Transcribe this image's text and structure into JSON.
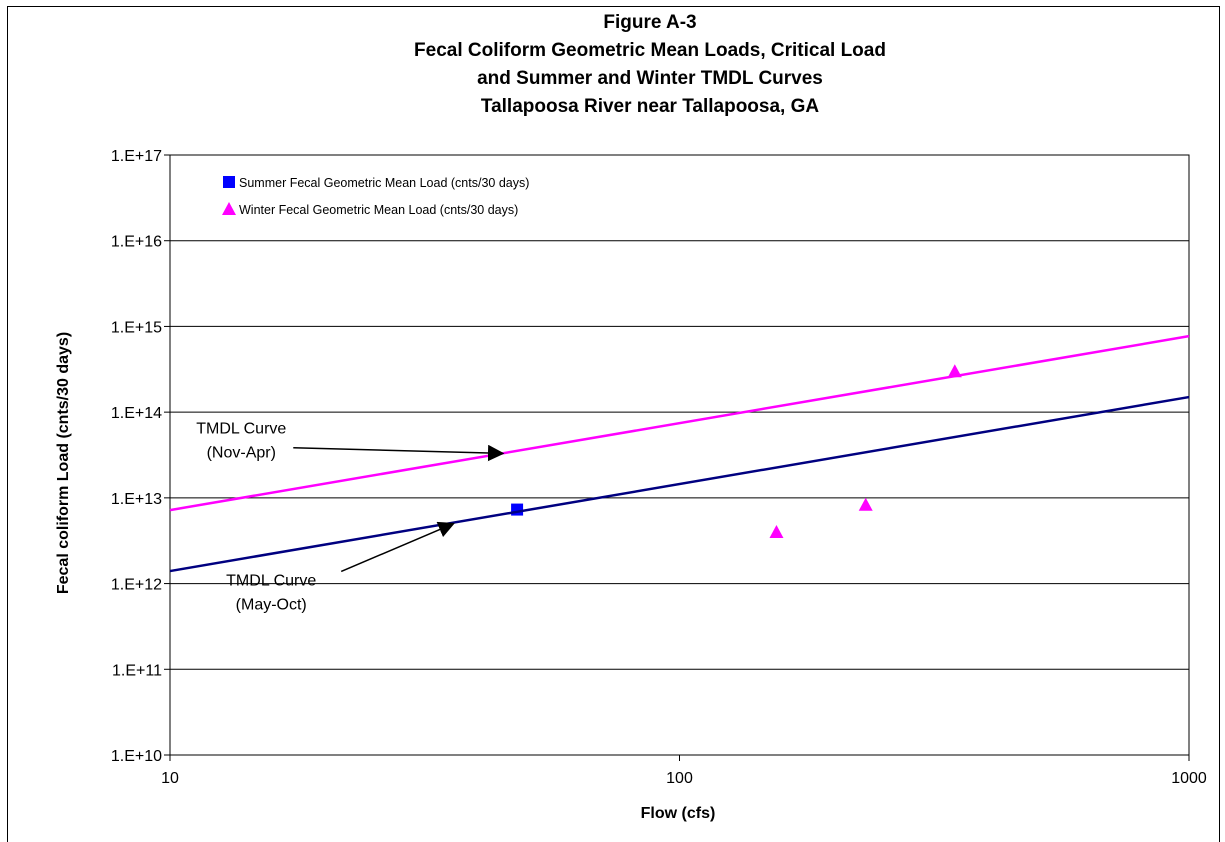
{
  "chart_data": {
    "type": "scatter",
    "title_lines": [
      "Figure A-3",
      "Fecal Coliform Geometric Mean Loads,  Critical Load",
      "and Summer and Winter TMDL Curves",
      "Tallapoosa River near Tallapoosa, GA"
    ],
    "xlabel": "Flow   (cfs)",
    "ylabel": "Fecal coliform Load  (cnts/30 days)",
    "x_scale": "log",
    "y_scale": "log",
    "xlim": [
      10,
      1000
    ],
    "ylim": [
      10000000000.0,
      1e+17
    ],
    "x_ticks": [
      {
        "value": 10,
        "label": "10"
      },
      {
        "value": 100,
        "label": "100"
      },
      {
        "value": 1000,
        "label": "1000"
      }
    ],
    "y_ticks": [
      {
        "value": 10000000000.0,
        "label": "1.E+10"
      },
      {
        "value": 100000000000.0,
        "label": "1.E+11"
      },
      {
        "value": 1000000000000.0,
        "label": "1.E+12"
      },
      {
        "value": 10000000000000.0,
        "label": "1.E+13"
      },
      {
        "value": 100000000000000.0,
        "label": "1.E+14"
      },
      {
        "value": 1000000000000000.0,
        "label": "1.E+15"
      },
      {
        "value": 1e+16,
        "label": "1.E+16"
      },
      {
        "value": 1e+17,
        "label": "1.E+17"
      }
    ],
    "grid": "horizontal",
    "legend_position": "top-left",
    "series": [
      {
        "name": "Summer Fecal Geometric Mean Load (cnts/30 days)",
        "kind": "points",
        "marker": "square",
        "color": "#0000ff",
        "points": [
          {
            "x": 48,
            "y": 7300000000000.0
          }
        ]
      },
      {
        "name": "Winter Fecal Geometric Mean Load (cnts/30 days)",
        "kind": "points",
        "marker": "triangle",
        "color": "#ff00ff",
        "points": [
          {
            "x": 155,
            "y": 4000000000000.0
          },
          {
            "x": 232,
            "y": 8300000000000.0
          },
          {
            "x": 347,
            "y": 300000000000000.0
          }
        ]
      },
      {
        "kind": "line",
        "color": "#ff00ff",
        "points": [
          {
            "x": 10,
            "y": 7200000000000.0
          },
          {
            "x": 1000,
            "y": 770000000000000.0
          }
        ]
      },
      {
        "kind": "line",
        "color": "#000080",
        "points": [
          {
            "x": 10,
            "y": 1400000000000.0
          },
          {
            "x": 1000,
            "y": 150000000000000.0
          }
        ]
      }
    ],
    "annotations": [
      {
        "lines": [
          "TMDL Curve",
          "(Nov-Apr)"
        ],
        "text_at": {
          "x": 13.8,
          "y": 56000000000000.0
        },
        "arrow_to": {
          "x": 45,
          "y": 33000000000000.0
        }
      },
      {
        "lines": [
          "TMDL Curve",
          "(May-Oct)"
        ],
        "text_at": {
          "x": 15.8,
          "y": 950000000000.0
        },
        "arrow_to": {
          "x": 36,
          "y": 5000000000000.0
        }
      }
    ]
  }
}
